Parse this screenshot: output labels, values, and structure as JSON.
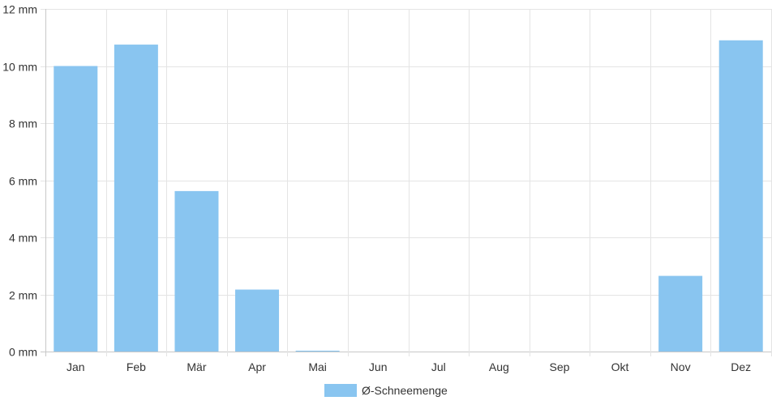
{
  "chart_data": {
    "type": "bar",
    "categories": [
      "Jan",
      "Feb",
      "Mär",
      "Apr",
      "Mai",
      "Jun",
      "Jul",
      "Aug",
      "Sep",
      "Okt",
      "Nov",
      "Dez"
    ],
    "series": [
      {
        "name": "Ø-Schneemenge",
        "values": [
          10.0,
          10.75,
          5.62,
          2.17,
          0.03,
          0,
          0,
          0,
          0,
          0,
          2.65,
          10.9
        ],
        "color": "#89c5f0"
      }
    ],
    "y_ticks": [
      "0 mm",
      "2 mm",
      "4 mm",
      "6 mm",
      "8 mm",
      "10 mm",
      "12 mm"
    ],
    "ylim": [
      0,
      12
    ],
    "unit": "mm",
    "grid": true,
    "legend_position": "bottom"
  }
}
